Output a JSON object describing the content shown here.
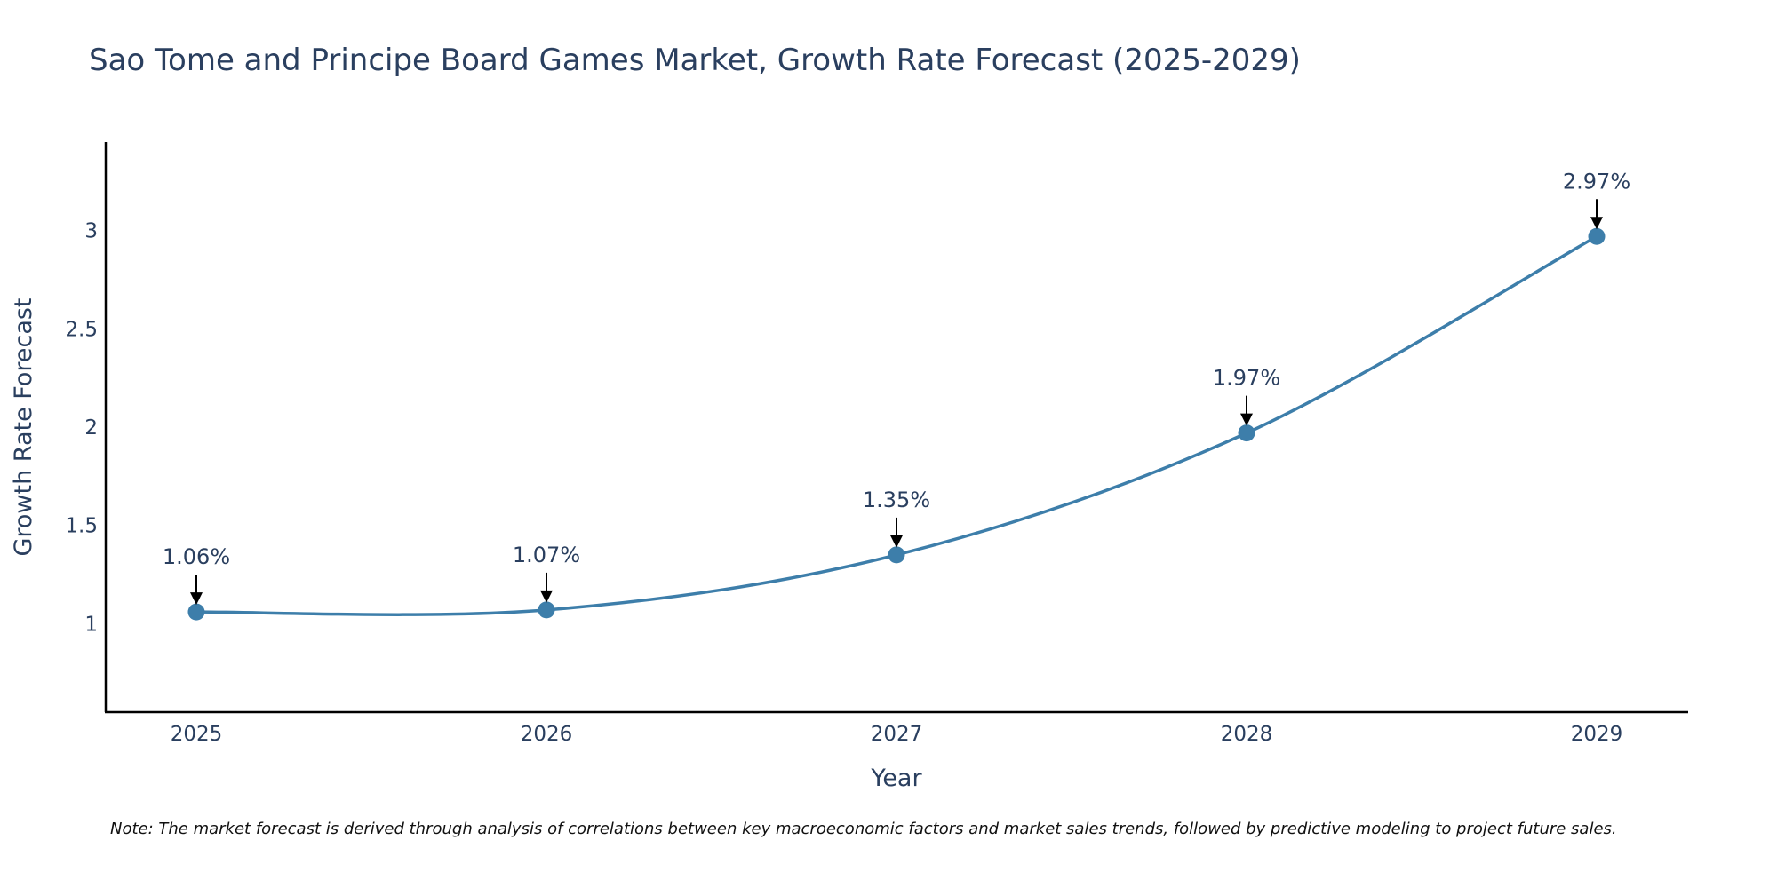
{
  "chart_data": {
    "type": "line",
    "title": "Sao Tome and Principe Board Games Market, Growth Rate Forecast (2025-2029)",
    "xlabel": "Year",
    "ylabel": "Growth Rate Forecast",
    "categories": [
      "2025",
      "2026",
      "2027",
      "2028",
      "2029"
    ],
    "values": [
      1.06,
      1.07,
      1.35,
      1.97,
      2.97
    ],
    "data_labels": [
      "1.06%",
      "1.07%",
      "1.35%",
      "1.97%",
      "2.97%"
    ],
    "y_ticks": [
      1,
      1.5,
      2,
      2.5,
      3
    ],
    "y_tick_labels": [
      "1",
      "1.5",
      "2",
      "2.5",
      "3"
    ],
    "ylim": [
      0.55,
      3.45
    ],
    "grid": false,
    "line_color": "#3d7eaa",
    "note": "Note: The market forecast is derived through analysis of correlations between key macroeconomic factors and market sales trends, followed by predictive modeling to project future sales."
  }
}
